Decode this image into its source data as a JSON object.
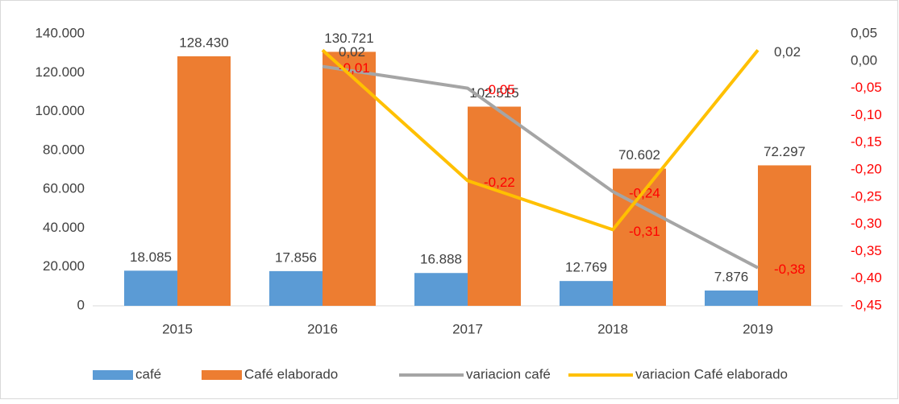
{
  "chart_data": {
    "type": "bar_line",
    "categories": [
      "2015",
      "2016",
      "2017",
      "2018",
      "2019"
    ],
    "series": [
      {
        "name": "café",
        "type": "bar",
        "color": "#5b9bd5",
        "values": [
          18085,
          17856,
          16888,
          12769,
          7876
        ],
        "value_labels": [
          "18.085",
          "17.856",
          "16.888",
          "12.769",
          "7.876"
        ]
      },
      {
        "name": "Café elaborado",
        "type": "bar",
        "color": "#ed7d31",
        "values": [
          128430,
          130721,
          102515,
          70602,
          72297
        ],
        "value_labels": [
          "128.430",
          "130.721",
          "102.515",
          "70.602",
          "72.297"
        ]
      },
      {
        "name": "variacion café",
        "type": "line",
        "axis": "y2",
        "color": "#a5a5a5",
        "values": [
          null,
          -0.01,
          -0.05,
          -0.24,
          -0.38
        ],
        "value_labels": [
          null,
          "-0,01",
          "-0,05",
          "-0,24",
          "-0,38"
        ]
      },
      {
        "name": "variacion Café elaborado",
        "type": "line",
        "axis": "y2",
        "color": "#ffc000",
        "values": [
          null,
          0.02,
          -0.22,
          -0.31,
          0.02
        ],
        "value_labels": [
          null,
          "0,02",
          "-0,22",
          "-0,31",
          "0,02"
        ]
      }
    ],
    "ylim": [
      0,
      140000
    ],
    "yticks": [
      0,
      {
        "value": 20000,
        "label": "20.000"
      },
      {
        "value": 40000,
        "label": "40.000"
      },
      {
        "value": 60000,
        "label": "60.000"
      },
      {
        "value": 80000,
        "label": "80.000"
      },
      {
        "value": 100000,
        "label": "100.000"
      },
      {
        "value": 120000,
        "label": "120.000"
      },
      {
        "value": 140000,
        "label": "140.000"
      }
    ],
    "y2lim": [
      -0.45,
      0.05
    ],
    "y2ticks": [
      {
        "value": 0.05,
        "label": "0,05"
      },
      {
        "value": 0,
        "label": "0,00"
      },
      {
        "value": -0.05,
        "label": "-0,05"
      },
      {
        "value": -0.1,
        "label": "-0,10"
      },
      {
        "value": -0.15,
        "label": "-0,15"
      },
      {
        "value": -0.2,
        "label": "-0,20"
      },
      {
        "value": -0.25,
        "label": "-0,25"
      },
      {
        "value": -0.3,
        "label": "-0,30"
      },
      {
        "value": -0.35,
        "label": "-0,35"
      },
      {
        "value": -0.4,
        "label": "-0,40"
      },
      {
        "value": -0.45,
        "label": "-0,45"
      }
    ],
    "legend": "bottom"
  }
}
